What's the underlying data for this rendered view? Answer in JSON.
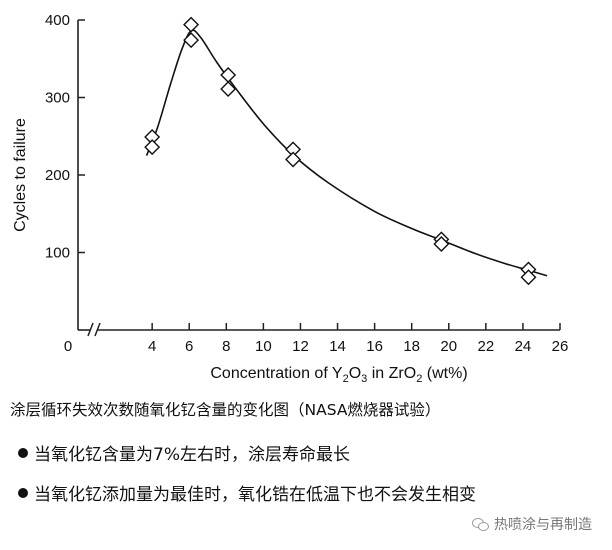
{
  "chart_data": {
    "type": "scatter",
    "xlabel_parts": [
      "Concentration of Y",
      "2",
      "O",
      "3",
      " in ZrO",
      "2",
      " (wt%)"
    ],
    "ylabel": "Cycles to failure",
    "xlim": [
      0,
      26
    ],
    "ylim": [
      0,
      400
    ],
    "x_ticks": [
      "0",
      "4",
      "6",
      "8",
      "10",
      "12",
      "14",
      "16",
      "18",
      "20",
      "22",
      "24",
      "26"
    ],
    "y_ticks": [
      "100",
      "200",
      "300",
      "400"
    ],
    "axis_break": true,
    "marker": "diamond",
    "points": [
      {
        "x": 4.0,
        "y": 249
      },
      {
        "x": 4.0,
        "y": 236
      },
      {
        "x": 6.1,
        "y": 394
      },
      {
        "x": 6.1,
        "y": 374
      },
      {
        "x": 8.1,
        "y": 329
      },
      {
        "x": 8.1,
        "y": 311
      },
      {
        "x": 11.6,
        "y": 233
      },
      {
        "x": 11.6,
        "y": 220
      },
      {
        "x": 19.6,
        "y": 117
      },
      {
        "x": 19.6,
        "y": 111
      },
      {
        "x": 24.3,
        "y": 78
      },
      {
        "x": 24.3,
        "y": 68
      }
    ],
    "fit_curve": [
      [
        3.7,
        225
      ],
      [
        4.3,
        262
      ],
      [
        5.0,
        318
      ],
      [
        5.6,
        362
      ],
      [
        6.1,
        386
      ],
      [
        6.6,
        378
      ],
      [
        7.5,
        345
      ],
      [
        8.5,
        312
      ],
      [
        10.0,
        266
      ],
      [
        11.6,
        226
      ],
      [
        13.5,
        190
      ],
      [
        16.0,
        153
      ],
      [
        18.0,
        131
      ],
      [
        19.6,
        116
      ],
      [
        21.5,
        98
      ],
      [
        23.0,
        86
      ],
      [
        24.3,
        77
      ],
      [
        25.3,
        70
      ]
    ]
  },
  "caption": "涂层循环失效次数随氧化钇含量的变化图（NASA燃烧器试验）",
  "bullets": [
    "当氧化钇含量为7%左右时，涂层寿命最长",
    "当氧化钇添加量为最佳时，氧化锆在低温下也不会发生相变"
  ],
  "watermark": "热喷涂与再制造"
}
